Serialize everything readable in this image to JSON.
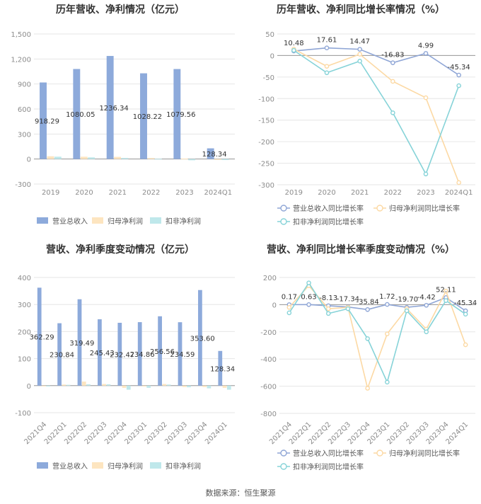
{
  "source": "数据来源：恒生聚源",
  "colors": {
    "revenue": "#8daadb",
    "netprofit": "#fde5c0",
    "deducted": "#bfe8eb",
    "rev_line": "#8fa6d6",
    "np_line": "#fcd9a4",
    "ded_line": "#86d3d8",
    "grid": "#e6e6e6",
    "axis_text": "#8c8c8c",
    "label_text": "#333333"
  },
  "chart_data": [
    {
      "type": "bar",
      "title": "历年营收、净利情况（亿元）",
      "categories": [
        "2019",
        "2020",
        "2021",
        "2022",
        "2023",
        "2024Q1"
      ],
      "yticks": [
        "1,500",
        "1,200",
        "900",
        "600",
        "300",
        "0",
        "-300"
      ],
      "ylim": [
        -300,
        1500
      ],
      "series": [
        {
          "name": "营业总收入",
          "values": [
            918.29,
            1080.05,
            1236.34,
            1028.22,
            1079.56,
            128.34
          ]
        },
        {
          "name": "归母净利润",
          "values": [
            33,
            28,
            26,
            12,
            6,
            -10
          ]
        },
        {
          "name": "扣非净利润",
          "values": [
            28,
            20,
            13,
            3,
            -15,
            -12
          ]
        }
      ],
      "data_labels": [
        "918.29",
        "1080.05",
        "1236.34",
        "1028.22",
        "1079.56",
        "128.34"
      ],
      "legend": "bottom"
    },
    {
      "type": "line",
      "title": "历年营收、净利同比增长率情况（%）",
      "categories": [
        "2019",
        "2020",
        "2021",
        "2022",
        "2023",
        "2024Q1"
      ],
      "yticks": [
        "50",
        "0",
        "-50",
        "-100",
        "-150",
        "-200",
        "-250",
        "-300"
      ],
      "ylim": [
        -300,
        50
      ],
      "series": [
        {
          "name": "营业总收入同比增长率",
          "values": [
            10.48,
            17.61,
            14.47,
            -16.83,
            4.99,
            -45.34
          ]
        },
        {
          "name": "归母净利润同比增长率",
          "values": [
            15,
            -25,
            3,
            -60,
            -98,
            -295
          ]
        },
        {
          "name": "扣非净利润同比增长率",
          "values": [
            12,
            -40,
            -13,
            -133,
            -275,
            -70
          ]
        }
      ],
      "data_labels": [
        "10.48",
        "17.61",
        "14.47",
        "-16.83",
        "4.99",
        "-45.34"
      ],
      "legend": "bottom"
    },
    {
      "type": "bar",
      "title": "营收、净利季度变动情况（亿元）",
      "categories": [
        "2021Q4",
        "2022Q1",
        "2022Q2",
        "2022Q3",
        "2022Q4",
        "2023Q1",
        "2023Q2",
        "2023Q3",
        "2023Q4",
        "2024Q1"
      ],
      "yticks": [
        "400",
        "300",
        "200",
        "100",
        "0",
        "-100"
      ],
      "ylim": [
        -100,
        400
      ],
      "series": [
        {
          "name": "营业总收入",
          "values": [
            362.29,
            230.84,
            319.49,
            245.43,
            232.47,
            234.86,
            256.56,
            234.59,
            353.6,
            128.34
          ]
        },
        {
          "name": "归母净利润",
          "values": [
            -2,
            4,
            15,
            6,
            -8,
            -3,
            6,
            -5,
            -5,
            -8
          ]
        },
        {
          "name": "扣非净利润",
          "values": [
            -3,
            3,
            5,
            5,
            -15,
            -8,
            4,
            -6,
            -10,
            -15
          ]
        }
      ],
      "data_labels": [
        "362.29",
        "230.84",
        "319.49",
        "245.43",
        "232.47",
        "234.86",
        "256.56",
        "234.59",
        "353.60",
        "128.34"
      ],
      "legend": "bottom"
    },
    {
      "type": "line",
      "title": "营收、净利同比增长率季度变动情况（%）",
      "categories": [
        "2021Q4",
        "2022Q1",
        "2022Q2",
        "2022Q3",
        "2022Q4",
        "2023Q1",
        "2023Q2",
        "2023Q3",
        "2023Q4",
        "2024Q1"
      ],
      "yticks": [
        "200",
        "0",
        "-200",
        "-400",
        "-600",
        "-800"
      ],
      "ylim": [
        -800,
        200
      ],
      "series": [
        {
          "name": "营业总收入同比增长率",
          "values": [
            0.17,
            0.63,
            -8.13,
            -17.34,
            -35.84,
            1.72,
            -19.7,
            -4.42,
            52.11,
            -45.34
          ]
        },
        {
          "name": "归母净利润同比增长率",
          "values": [
            -20,
            140,
            -30,
            -20,
            -615,
            -215,
            -30,
            -180,
            100,
            -295
          ]
        },
        {
          "name": "扣非净利润同比增长率",
          "values": [
            -60,
            160,
            -65,
            -30,
            -250,
            -570,
            -45,
            -200,
            30,
            -70
          ]
        }
      ],
      "data_labels": [
        "0.17",
        "0.63",
        "-8.13",
        "-17.34",
        "-35.84",
        "1.72",
        "-19.70",
        "-4.42",
        "52.11",
        "-45.34"
      ],
      "legend": "bottom"
    }
  ]
}
